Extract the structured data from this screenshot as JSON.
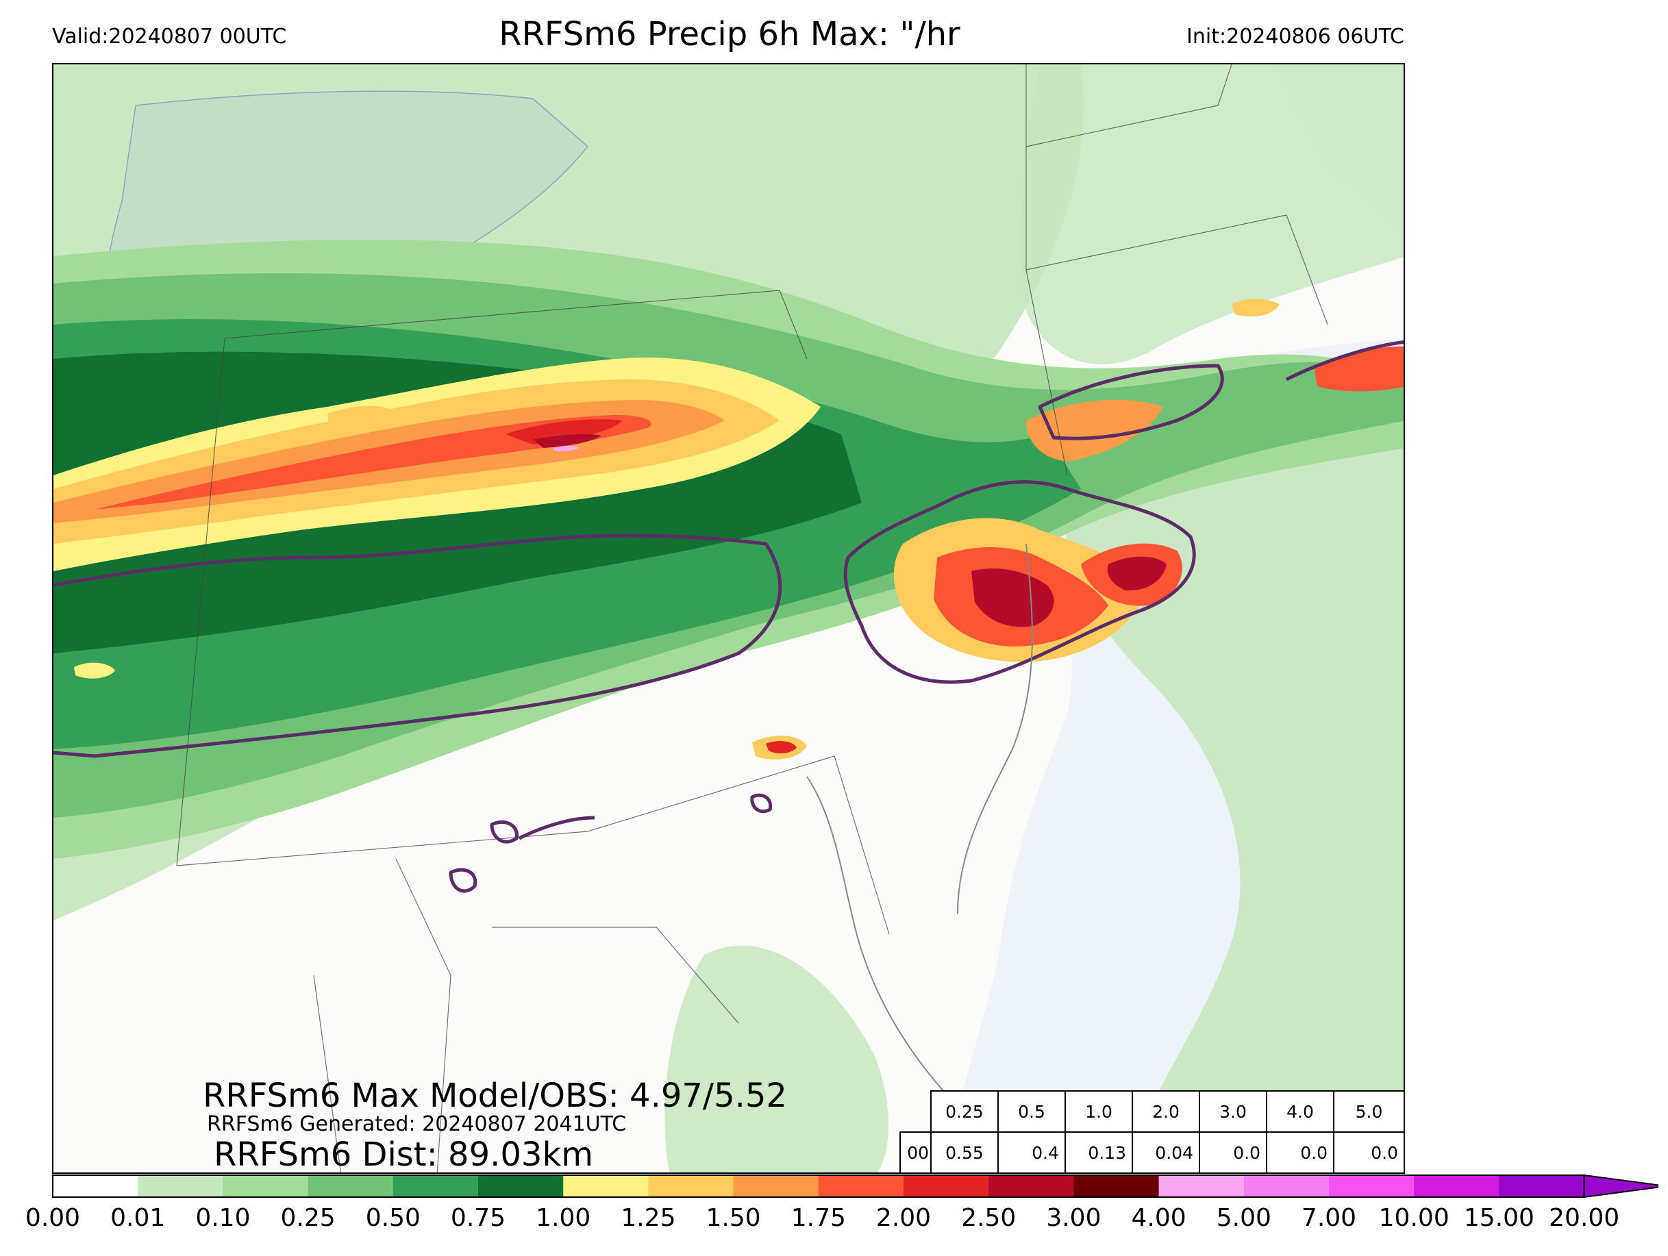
{
  "header": {
    "valid": "Valid:20240807 00UTC",
    "title": "RRFSm6 Precip 6h Max: \"/hr",
    "init": "Init:20240806 06UTC"
  },
  "stats": {
    "max_model_obs": "RRFSm6 Max Model/OBS: 4.97/5.52",
    "generated": "RRFSm6 Generated: 20240807 2041UTC",
    "dist": "RRFSm6 Dist: 89.03km"
  },
  "threshold_table": {
    "thresholds": [
      "0.25",
      "0.5",
      "1.0",
      "2.0",
      "3.0",
      "4.0",
      "5.0"
    ],
    "row_label": "00",
    "values": [
      "0.55",
      "0.4",
      "0.13",
      "0.04",
      "0.0",
      "0.0",
      "0.0"
    ]
  },
  "colorbar": {
    "ticks": [
      "0.00",
      "0.01",
      "0.10",
      "0.25",
      "0.50",
      "0.75",
      "1.00",
      "1.25",
      "1.50",
      "1.75",
      "2.00",
      "2.50",
      "3.00",
      "4.00",
      "5.00",
      "7.00",
      "10.00",
      "15.00",
      "20.00"
    ],
    "colors": [
      "#ffffff",
      "#c8e6c0",
      "#a3dc98",
      "#72c275",
      "#35a055",
      "#127033",
      "#fcf384",
      "#fdcc5c",
      "#fd9b48",
      "#fc5435",
      "#e32224",
      "#b20c2a",
      "#6b0005",
      "#f8a6f2",
      "#f47ff0",
      "#f450f2",
      "#d41be0",
      "#9a06cc"
    ],
    "extend": "max"
  },
  "map_colors": {
    "ocean": "#eef3fa",
    "land": "#fbfbfa",
    "obs_contour": "#5b2c66",
    "borders": "#444444"
  }
}
